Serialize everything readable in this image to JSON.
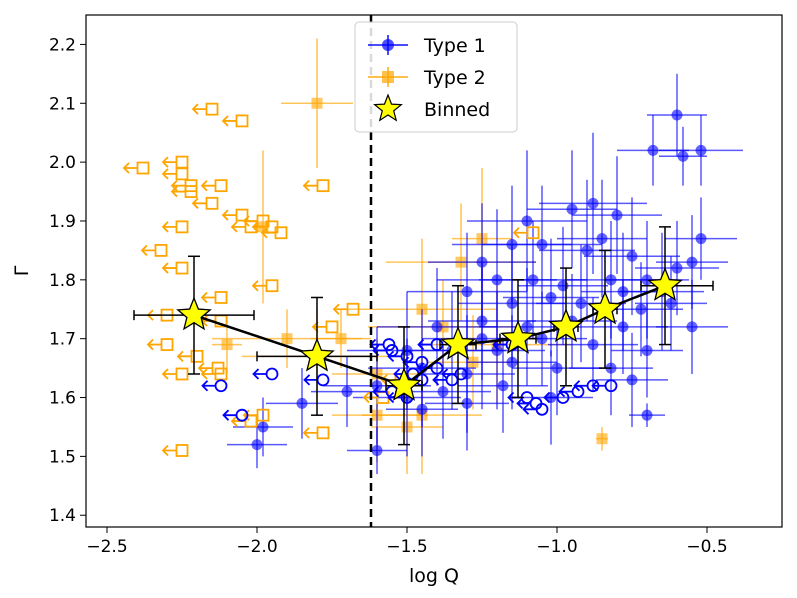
{
  "chart_data": {
    "type": "scatter",
    "xlabel": "log Q",
    "ylabel": "Γ",
    "xlim": [
      -2.57,
      -0.25
    ],
    "ylim": [
      1.38,
      2.25
    ],
    "xticks": [
      -2.5,
      -2.0,
      -1.5,
      -1.0,
      -0.5
    ],
    "xtick_labels": [
      "−2.5",
      "−2.0",
      "−1.5",
      "−1.0",
      "−0.5"
    ],
    "yticks": [
      1.4,
      1.5,
      1.6,
      1.7,
      1.8,
      1.9,
      2.0,
      2.1,
      2.2
    ],
    "ytick_labels": [
      "1.4",
      "1.5",
      "1.6",
      "1.7",
      "1.8",
      "1.9",
      "2.0",
      "2.1",
      "2.2"
    ],
    "threshold_x": -1.62,
    "legend": {
      "position": "top-center",
      "entries": [
        "Type 1",
        "Type 2",
        "Binned"
      ]
    },
    "series": [
      {
        "name": "Type 1",
        "color": "#0000ff",
        "detections": [
          {
            "x": -0.68,
            "y": 2.02,
            "xerr": 0.12,
            "yerr": 0.06
          },
          {
            "x": -0.6,
            "y": 2.08,
            "xerr": 0.1,
            "yerr": 0.07
          },
          {
            "x": -0.58,
            "y": 2.01,
            "xerr": 0.08,
            "yerr": 0.05
          },
          {
            "x": -0.52,
            "y": 2.02,
            "xerr": 0.14,
            "yerr": 0.06
          },
          {
            "x": -0.52,
            "y": 1.87,
            "xerr": 0.12,
            "yerr": 0.07
          },
          {
            "x": -0.95,
            "y": 1.92,
            "xerr": 0.15,
            "yerr": 0.1
          },
          {
            "x": -1.1,
            "y": 1.9,
            "xerr": 0.2,
            "yerr": 0.12
          },
          {
            "x": -0.8,
            "y": 1.91,
            "xerr": 0.15,
            "yerr": 0.1
          },
          {
            "x": -0.88,
            "y": 1.93,
            "xerr": 0.18,
            "yerr": 0.12
          },
          {
            "x": -1.15,
            "y": 1.86,
            "xerr": 0.2,
            "yerr": 0.1
          },
          {
            "x": -1.05,
            "y": 1.86,
            "xerr": 0.2,
            "yerr": 0.1
          },
          {
            "x": -0.9,
            "y": 1.85,
            "xerr": 0.16,
            "yerr": 0.12
          },
          {
            "x": -1.25,
            "y": 1.83,
            "xerr": 0.18,
            "yerr": 0.1
          },
          {
            "x": -0.75,
            "y": 1.84,
            "xerr": 0.16,
            "yerr": 0.1
          },
          {
            "x": -0.85,
            "y": 1.87,
            "xerr": 0.15,
            "yerr": 0.1
          },
          {
            "x": -1.2,
            "y": 1.8,
            "xerr": 0.2,
            "yerr": 0.12
          },
          {
            "x": -1.08,
            "y": 1.8,
            "xerr": 0.18,
            "yerr": 0.1
          },
          {
            "x": -0.98,
            "y": 1.79,
            "xerr": 0.15,
            "yerr": 0.1
          },
          {
            "x": -0.82,
            "y": 1.8,
            "xerr": 0.15,
            "yerr": 0.1
          },
          {
            "x": -0.7,
            "y": 1.8,
            "xerr": 0.14,
            "yerr": 0.1
          },
          {
            "x": -0.6,
            "y": 1.82,
            "xerr": 0.14,
            "yerr": 0.08
          },
          {
            "x": -0.55,
            "y": 1.83,
            "xerr": 0.12,
            "yerr": 0.08
          },
          {
            "x": -1.3,
            "y": 1.78,
            "xerr": 0.2,
            "yerr": 0.1
          },
          {
            "x": -1.15,
            "y": 1.76,
            "xerr": 0.18,
            "yerr": 0.1
          },
          {
            "x": -1.02,
            "y": 1.77,
            "xerr": 0.16,
            "yerr": 0.1
          },
          {
            "x": -0.92,
            "y": 1.76,
            "xerr": 0.15,
            "yerr": 0.1
          },
          {
            "x": -0.72,
            "y": 1.75,
            "xerr": 0.14,
            "yerr": 0.08
          },
          {
            "x": -0.62,
            "y": 1.76,
            "xerr": 0.12,
            "yerr": 0.08
          },
          {
            "x": -1.4,
            "y": 1.72,
            "xerr": 0.2,
            "yerr": 0.1
          },
          {
            "x": -1.25,
            "y": 1.73,
            "xerr": 0.18,
            "yerr": 0.1
          },
          {
            "x": -1.1,
            "y": 1.72,
            "xerr": 0.16,
            "yerr": 0.1
          },
          {
            "x": -0.95,
            "y": 1.73,
            "xerr": 0.15,
            "yerr": 0.08
          },
          {
            "x": -0.78,
            "y": 1.72,
            "xerr": 0.15,
            "yerr": 0.08
          },
          {
            "x": -0.55,
            "y": 1.72,
            "xerr": 0.12,
            "yerr": 0.08
          },
          {
            "x": -1.5,
            "y": 1.68,
            "xerr": 0.2,
            "yerr": 0.1
          },
          {
            "x": -1.35,
            "y": 1.68,
            "xerr": 0.18,
            "yerr": 0.1
          },
          {
            "x": -1.2,
            "y": 1.68,
            "xerr": 0.16,
            "yerr": 0.1
          },
          {
            "x": -1.05,
            "y": 1.7,
            "xerr": 0.15,
            "yerr": 0.08
          },
          {
            "x": -0.88,
            "y": 1.69,
            "xerr": 0.15,
            "yerr": 0.08
          },
          {
            "x": -0.7,
            "y": 1.68,
            "xerr": 0.12,
            "yerr": 0.08
          },
          {
            "x": -1.45,
            "y": 1.65,
            "xerr": 0.18,
            "yerr": 0.1
          },
          {
            "x": -1.3,
            "y": 1.64,
            "xerr": 0.16,
            "yerr": 0.1
          },
          {
            "x": -1.15,
            "y": 1.66,
            "xerr": 0.15,
            "yerr": 0.08
          },
          {
            "x": -1.0,
            "y": 1.65,
            "xerr": 0.15,
            "yerr": 0.08
          },
          {
            "x": -0.82,
            "y": 1.65,
            "xerr": 0.14,
            "yerr": 0.08
          },
          {
            "x": -1.6,
            "y": 1.62,
            "xerr": 0.18,
            "yerr": 0.1
          },
          {
            "x": -1.5,
            "y": 1.6,
            "xerr": 0.18,
            "yerr": 0.1
          },
          {
            "x": -1.38,
            "y": 1.61,
            "xerr": 0.16,
            "yerr": 0.08
          },
          {
            "x": -1.18,
            "y": 1.62,
            "xerr": 0.15,
            "yerr": 0.08
          },
          {
            "x": -1.02,
            "y": 1.6,
            "xerr": 0.14,
            "yerr": 0.08
          },
          {
            "x": -0.75,
            "y": 1.63,
            "xerr": 0.12,
            "yerr": 0.08
          },
          {
            "x": -1.85,
            "y": 1.59,
            "xerr": 0.12,
            "yerr": 0.06
          },
          {
            "x": -1.7,
            "y": 1.61,
            "xerr": 0.12,
            "yerr": 0.06
          },
          {
            "x": -1.98,
            "y": 1.55,
            "xerr": 0.1,
            "yerr": 0.05
          },
          {
            "x": -2.0,
            "y": 1.52,
            "xerr": 0.1,
            "yerr": 0.04
          },
          {
            "x": -1.6,
            "y": 1.51,
            "xerr": 0.1,
            "yerr": 0.04
          },
          {
            "x": -1.45,
            "y": 1.58,
            "xerr": 0.12,
            "yerr": 0.08
          },
          {
            "x": -1.3,
            "y": 1.59,
            "xerr": 0.14,
            "yerr": 0.08
          },
          {
            "x": -0.7,
            "y": 1.57,
            "xerr": 0.06,
            "yerr": 0.02
          },
          {
            "x": -1.25,
            "y": 1.7,
            "xerr": 0.2,
            "yerr": 0.12
          },
          {
            "x": -0.65,
            "y": 1.78,
            "xerr": 0.14,
            "yerr": 0.1
          },
          {
            "x": -0.78,
            "y": 1.78,
            "xerr": 0.14,
            "yerr": 0.1
          }
        ],
        "upper_limits": [
          {
            "x": -2.12,
            "y": 1.62
          },
          {
            "x": -2.05,
            "y": 1.57
          },
          {
            "x": -1.95,
            "y": 1.64
          },
          {
            "x": -1.78,
            "y": 1.63
          },
          {
            "x": -1.56,
            "y": 1.69
          },
          {
            "x": -1.55,
            "y": 1.68
          },
          {
            "x": -1.5,
            "y": 1.67
          },
          {
            "x": -1.45,
            "y": 1.66
          },
          {
            "x": -1.4,
            "y": 1.65
          },
          {
            "x": -1.48,
            "y": 1.64
          },
          {
            "x": -1.45,
            "y": 1.63
          },
          {
            "x": -1.35,
            "y": 1.63
          },
          {
            "x": -1.55,
            "y": 1.61
          },
          {
            "x": -1.5,
            "y": 1.6
          },
          {
            "x": -1.4,
            "y": 1.69
          },
          {
            "x": -1.32,
            "y": 1.64
          },
          {
            "x": -1.15,
            "y": 1.69
          },
          {
            "x": -1.07,
            "y": 1.59
          },
          {
            "x": -0.98,
            "y": 1.6
          },
          {
            "x": -0.93,
            "y": 1.61
          },
          {
            "x": -0.88,
            "y": 1.62
          },
          {
            "x": -0.82,
            "y": 1.62
          },
          {
            "x": -1.05,
            "y": 1.58
          },
          {
            "x": -1.1,
            "y": 1.6
          }
        ]
      },
      {
        "name": "Type 2",
        "color": "#ffa500",
        "detections": [
          {
            "x": -1.8,
            "y": 2.1,
            "xerr": 0.12,
            "yerr": 0.11
          },
          {
            "x": -1.98,
            "y": 1.89,
            "xerr": 0.02,
            "yerr": 0.13
          },
          {
            "x": -1.8,
            "y": 1.67,
            "xerr": 0.25,
            "yerr": 0.08
          },
          {
            "x": -2.1,
            "y": 1.69,
            "xerr": 0.05,
            "yerr": 0.05
          },
          {
            "x": -1.9,
            "y": 1.7,
            "xerr": 0.25,
            "yerr": 0.05
          },
          {
            "x": -1.72,
            "y": 1.7,
            "xerr": 0.1,
            "yerr": 0.05
          },
          {
            "x": -1.45,
            "y": 1.75,
            "xerr": 0.25,
            "yerr": 0.12
          },
          {
            "x": -1.38,
            "y": 1.72,
            "xerr": 0.25,
            "yerr": 0.08
          },
          {
            "x": -1.32,
            "y": 1.83,
            "xerr": 0.25,
            "yerr": 0.1
          },
          {
            "x": -1.25,
            "y": 1.87,
            "xerr": 0.1,
            "yerr": 0.12
          },
          {
            "x": -1.2,
            "y": 1.69,
            "xerr": 0.25,
            "yerr": 0.1
          },
          {
            "x": -1.6,
            "y": 1.57,
            "xerr": 0.15,
            "yerr": 0.08
          },
          {
            "x": -1.45,
            "y": 1.57,
            "xerr": 0.2,
            "yerr": 0.1
          },
          {
            "x": -1.5,
            "y": 1.55,
            "xerr": 0.12,
            "yerr": 0.08
          },
          {
            "x": -0.85,
            "y": 1.53,
            "xerr": 0.02,
            "yerr": 0.02
          },
          {
            "x": -1.6,
            "y": 1.64,
            "xerr": 0.15,
            "yerr": 0.06
          },
          {
            "x": -1.28,
            "y": 1.66,
            "xerr": 0.15,
            "yerr": 0.08
          }
        ],
        "upper_limits": [
          {
            "x": -2.15,
            "y": 2.09
          },
          {
            "x": -2.05,
            "y": 2.07
          },
          {
            "x": -2.25,
            "y": 2.0
          },
          {
            "x": -2.38,
            "y": 1.99
          },
          {
            "x": -2.25,
            "y": 1.98
          },
          {
            "x": -2.22,
            "y": 1.96
          },
          {
            "x": -2.12,
            "y": 1.96
          },
          {
            "x": -1.78,
            "y": 1.96
          },
          {
            "x": -2.22,
            "y": 1.95
          },
          {
            "x": -2.15,
            "y": 1.93
          },
          {
            "x": -2.05,
            "y": 1.91
          },
          {
            "x": -1.98,
            "y": 1.9
          },
          {
            "x": -2.25,
            "y": 1.89
          },
          {
            "x": -2.02,
            "y": 1.89
          },
          {
            "x": -1.95,
            "y": 1.89
          },
          {
            "x": -1.92,
            "y": 1.88
          },
          {
            "x": -2.32,
            "y": 1.85
          },
          {
            "x": -2.25,
            "y": 1.82
          },
          {
            "x": -1.95,
            "y": 1.79
          },
          {
            "x": -2.12,
            "y": 1.77
          },
          {
            "x": -1.68,
            "y": 1.75
          },
          {
            "x": -2.3,
            "y": 1.74
          },
          {
            "x": -2.12,
            "y": 1.73
          },
          {
            "x": -1.75,
            "y": 1.72
          },
          {
            "x": -2.3,
            "y": 1.69
          },
          {
            "x": -2.2,
            "y": 1.67
          },
          {
            "x": -2.13,
            "y": 1.65
          },
          {
            "x": -2.12,
            "y": 1.64
          },
          {
            "x": -2.25,
            "y": 1.64
          },
          {
            "x": -1.98,
            "y": 1.57
          },
          {
            "x": -2.02,
            "y": 1.56
          },
          {
            "x": -1.78,
            "y": 1.54
          },
          {
            "x": -2.25,
            "y": 1.51
          },
          {
            "x": -1.08,
            "y": 1.88
          },
          {
            "x": -1.52,
            "y": 1.63
          },
          {
            "x": -1.58,
            "y": 1.6
          }
        ]
      },
      {
        "name": "Binned",
        "color": "#ffff00",
        "points": [
          {
            "x": -2.21,
            "y": 1.74,
            "xerr_lo": 0.2,
            "xerr_hi": 0.2,
            "yerr_lo": 0.1,
            "yerr_hi": 0.1
          },
          {
            "x": -1.8,
            "y": 1.67,
            "xerr_lo": 0.2,
            "xerr_hi": 0.2,
            "yerr_lo": 0.1,
            "yerr_hi": 0.1
          },
          {
            "x": -1.51,
            "y": 1.62,
            "xerr_lo": 0.06,
            "xerr_hi": 0.06,
            "yerr_lo": 0.1,
            "yerr_hi": 0.1
          },
          {
            "x": -1.33,
            "y": 1.69,
            "xerr_lo": 0.06,
            "xerr_hi": 0.06,
            "yerr_lo": 0.1,
            "yerr_hi": 0.1
          },
          {
            "x": -1.13,
            "y": 1.7,
            "xerr_lo": 0.06,
            "xerr_hi": 0.06,
            "yerr_lo": 0.1,
            "yerr_hi": 0.1
          },
          {
            "x": -0.97,
            "y": 1.72,
            "xerr_lo": 0.04,
            "xerr_hi": 0.04,
            "yerr_lo": 0.1,
            "yerr_hi": 0.1
          },
          {
            "x": -0.84,
            "y": 1.75,
            "xerr_lo": 0.04,
            "xerr_hi": 0.04,
            "yerr_lo": 0.1,
            "yerr_hi": 0.1
          },
          {
            "x": -0.64,
            "y": 1.79,
            "xerr_lo": 0.08,
            "xerr_hi": 0.16,
            "yerr_lo": 0.1,
            "yerr_hi": 0.1
          }
        ]
      }
    ]
  }
}
